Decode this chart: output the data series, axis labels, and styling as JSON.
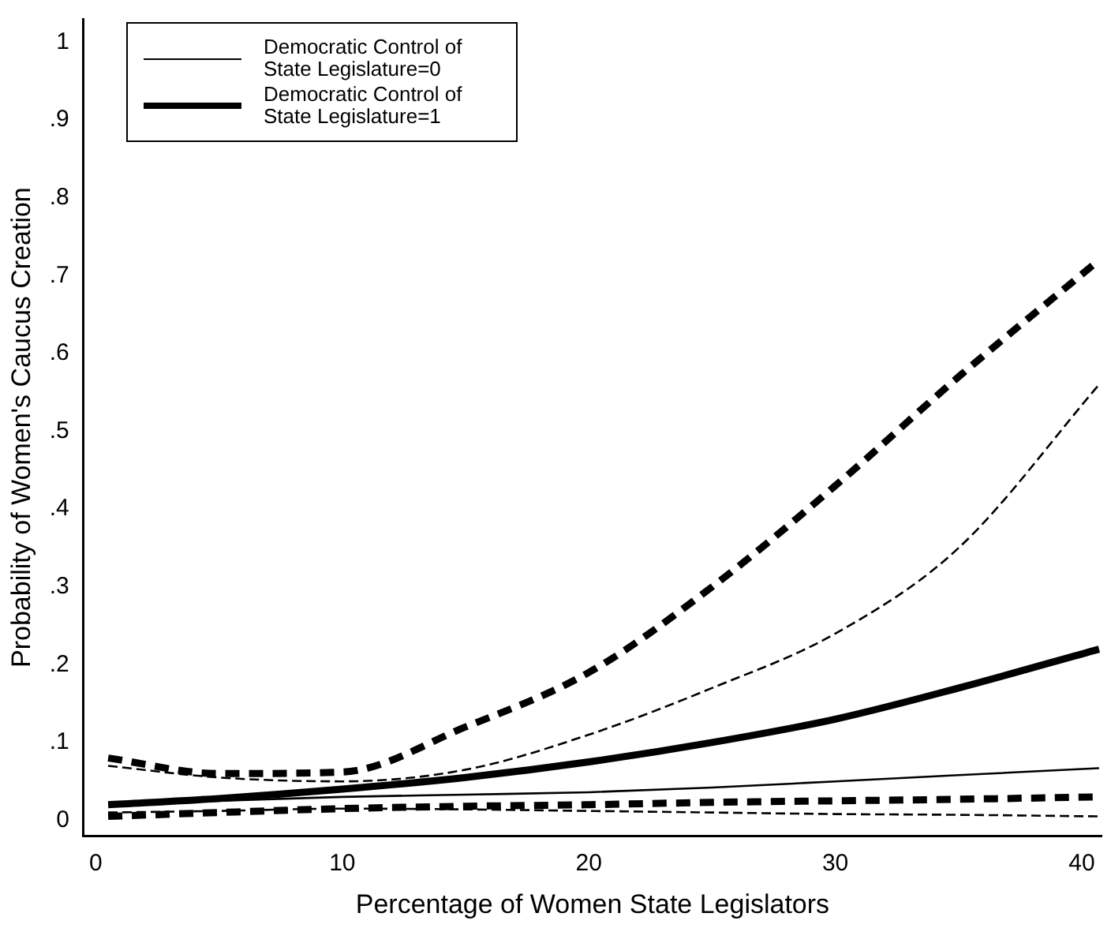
{
  "chart_data": {
    "type": "line",
    "xlabel": "Percentage of Women State Legislators",
    "ylabel": "Probability of Women's Caucus Creation",
    "x": [
      0.5,
      5,
      10,
      15,
      20,
      25,
      30,
      35,
      40.7
    ],
    "series": [
      {
        "name": "Democratic Control of State Legislature=0",
        "color": "#000000",
        "line_style": "solid",
        "values": [
          0.02,
          0.025,
          0.03,
          0.033,
          0.036,
          0.042,
          0.05,
          0.058,
          0.067
        ]
      },
      {
        "name": "Democratic Control of State Legislature=1",
        "color": "#000000",
        "line_style": "solid",
        "values": [
          0.02,
          0.028,
          0.04,
          0.055,
          0.075,
          0.1,
          0.13,
          0.17,
          0.22
        ]
      },
      {
        "color": "#000000",
        "line_style": "dashed",
        "values": [
          0.07,
          0.055,
          0.05,
          0.065,
          0.11,
          0.17,
          0.24,
          0.35,
          0.56
        ]
      },
      {
        "color": "#000000",
        "line_style": "dashed",
        "values": [
          0.01,
          0.012,
          0.015,
          0.014,
          0.012,
          0.01,
          0.008,
          0.007,
          0.005
        ]
      },
      {
        "color": "#000000",
        "line_style": "dashed",
        "values": [
          0.08,
          0.06,
          0.062,
          0.12,
          0.19,
          0.3,
          0.43,
          0.57,
          0.72
        ]
      },
      {
        "color": "#000000",
        "line_style": "dashed",
        "values": [
          0.005,
          0.01,
          0.015,
          0.018,
          0.02,
          0.023,
          0.025,
          0.027,
          0.03
        ]
      }
    ],
    "xlim": [
      -0.5,
      40.8
    ],
    "xticks": [
      0,
      10,
      20,
      30,
      40
    ],
    "ylim": [
      -0.02,
      1.03
    ],
    "yticks": [
      0,
      {
        "value": 0.1,
        "label": ".1"
      },
      {
        "value": 0.2,
        "label": ".2"
      },
      {
        "value": 0.3,
        "label": ".3"
      },
      {
        "value": 0.4,
        "label": ".4"
      },
      {
        "value": 0.5,
        "label": ".5"
      },
      {
        "value": 0.6,
        "label": ".6"
      },
      {
        "value": 0.7,
        "label": ".7"
      },
      {
        "value": 0.8,
        "label": ".8"
      },
      {
        "value": 0.9,
        "label": ".9"
      },
      1
    ],
    "grid": false,
    "legend": "top left",
    "marker": "none"
  }
}
